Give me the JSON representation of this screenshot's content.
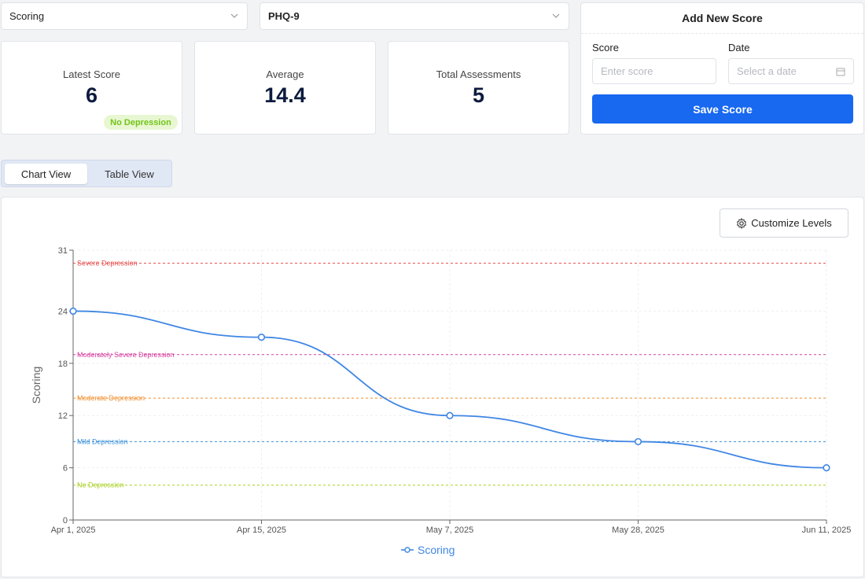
{
  "filters": {
    "scoring_select": "Scoring",
    "questionnaire_select": "PHQ-9"
  },
  "stats": {
    "latest": {
      "label": "Latest Score",
      "value": "6",
      "badge": "No Depression"
    },
    "average": {
      "label": "Average",
      "value": "14.4"
    },
    "total": {
      "label": "Total Assessments",
      "value": "5"
    }
  },
  "add_score": {
    "title": "Add New Score",
    "score_label": "Score",
    "score_placeholder": "Enter score",
    "date_label": "Date",
    "date_placeholder": "Select a date",
    "save_label": "Save Score"
  },
  "view_toggle": {
    "chart": "Chart View",
    "table": "Table View"
  },
  "customize_label": "Customize Levels",
  "colors": {
    "accent": "#1868f0",
    "line": "#3f86e4",
    "badge_text": "#72c41a"
  },
  "chart_data": {
    "type": "line",
    "x": [
      "Apr 1, 2025",
      "Apr 15, 2025",
      "May 7, 2025",
      "May 28, 2025",
      "Jun 11, 2025"
    ],
    "series": [
      {
        "name": "Scoring",
        "values": [
          24,
          21,
          12,
          9,
          6
        ]
      }
    ],
    "ylabel": "Scoring",
    "ylim": [
      0,
      31
    ],
    "yticks": [
      0,
      6,
      12,
      18,
      24,
      31
    ],
    "legend": "bottom-center",
    "grid": true,
    "levels": [
      {
        "label": "Severe Depression",
        "value": 29.5,
        "color": "#e84a4a"
      },
      {
        "label": "Moderately Severe Depression",
        "value": 19,
        "color": "#d6409f"
      },
      {
        "label": "Moderate Depression",
        "value": 14,
        "color": "#f08c2a"
      },
      {
        "label": "Mild Depression",
        "value": 9,
        "color": "#3a8fd8"
      },
      {
        "label": "No Depression",
        "value": 4,
        "color": "#a6cf1f"
      }
    ]
  }
}
